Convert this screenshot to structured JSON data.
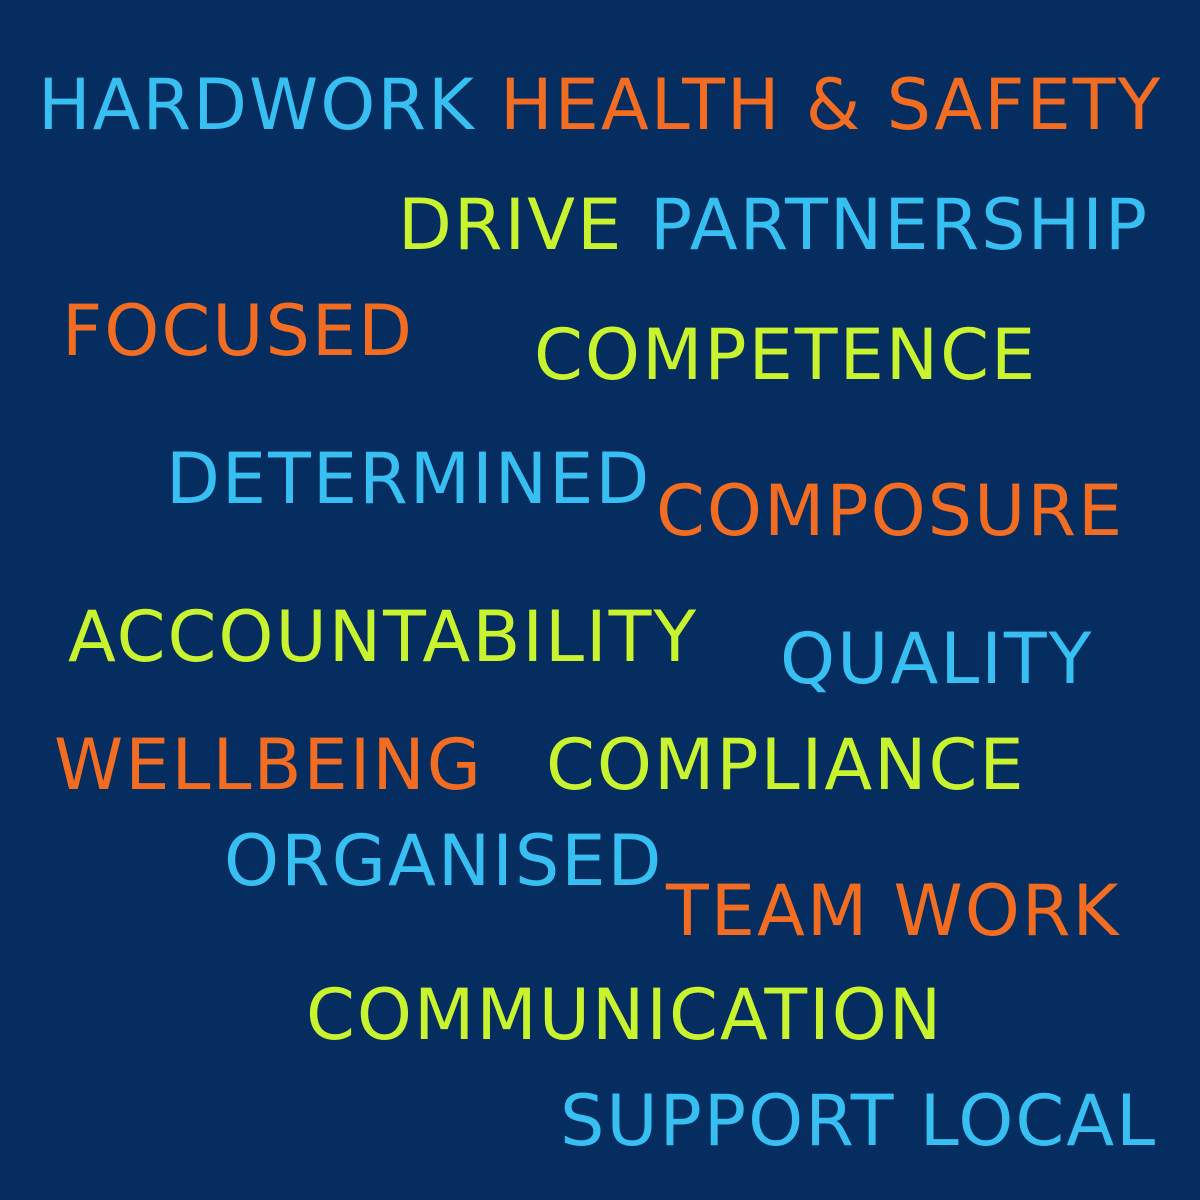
{
  "colors": {
    "background": "#062d5f",
    "blue": "#36bff0",
    "orange": "#f26c22",
    "lime": "#c9f22f"
  },
  "words": {
    "hardwork": "HARDWORK",
    "health_safety": "HEALTH & SAFETY",
    "drive": "DRIVE",
    "partnership": "PARTNERSHIP",
    "focused": "FOCUSED",
    "competence": "COMPETENCE",
    "determined": "DETERMINED",
    "composure": "COMPOSURE",
    "accountability": "ACCOUNTABILITY",
    "quality": "QUALITY",
    "wellbeing": "WELLBEING",
    "compliance": "COMPLIANCE",
    "organised": "ORGANISED",
    "team_work": "TEAM WORK",
    "communication": "COMMUNICATION",
    "support_local": "SUPPORT LOCAL"
  }
}
